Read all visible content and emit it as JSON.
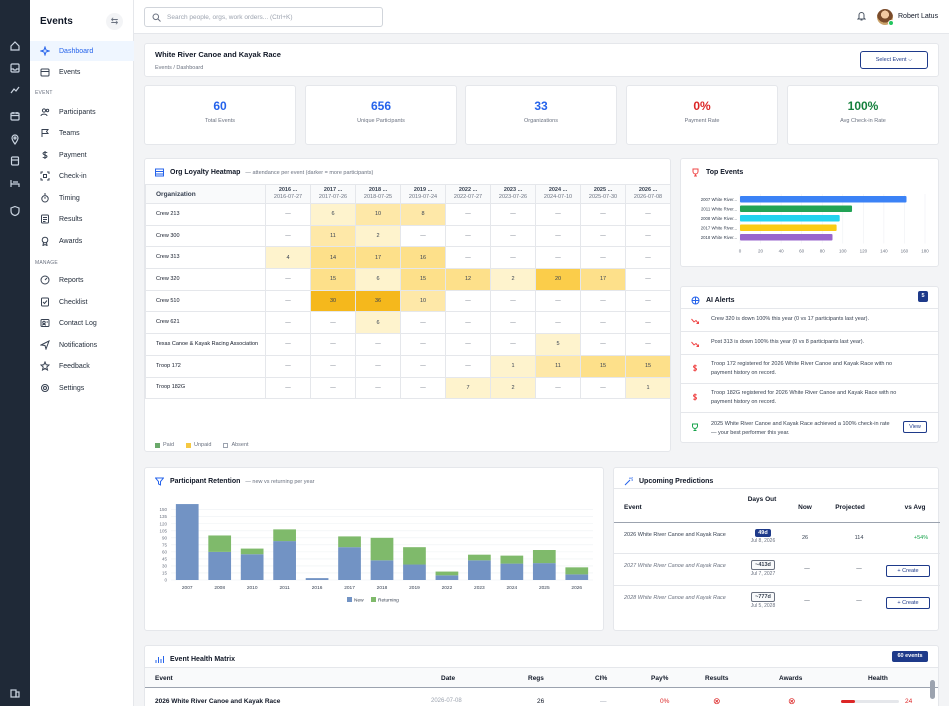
{
  "sidebar": {
    "brand": "Events",
    "items": [
      {
        "label": "Dashboard",
        "icon": "sparkle-icon",
        "active": true
      },
      {
        "label": "Events",
        "icon": "calendar-icon"
      }
    ],
    "section_event": "EVENT",
    "event_items": [
      {
        "label": "Participants",
        "icon": "users-icon"
      },
      {
        "label": "Teams",
        "icon": "flag-icon"
      },
      {
        "label": "Payment",
        "icon": "dollar-icon"
      },
      {
        "label": "Check-in",
        "icon": "scan-icon"
      },
      {
        "label": "Timing",
        "icon": "stopwatch-icon"
      },
      {
        "label": "Results",
        "icon": "list-icon"
      },
      {
        "label": "Awards",
        "icon": "medal-icon"
      }
    ],
    "section_manage": "MANAGE",
    "manage_items": [
      {
        "label": "Reports",
        "icon": "gauge-icon"
      },
      {
        "label": "Checklist",
        "icon": "checklist-icon"
      },
      {
        "label": "Contact Log",
        "icon": "contact-icon"
      },
      {
        "label": "Notifications",
        "icon": "send-icon"
      },
      {
        "label": "Feedback",
        "icon": "star-icon"
      },
      {
        "label": "Settings",
        "icon": "gear-icon"
      }
    ]
  },
  "topbar": {
    "search_placeholder": "Search people, orgs, work orders... (Ctrl+K)",
    "user_name": "Robert Latus"
  },
  "header": {
    "title": "White River Canoe and Kayak Race",
    "breadcrumb": "Events  /  Dashboard",
    "select_event": "Select Event ⌵"
  },
  "stats": [
    {
      "value": "60",
      "label": "Total Events",
      "color": "#2563eb"
    },
    {
      "value": "656",
      "label": "Unique Participants",
      "color": "#2563eb"
    },
    {
      "value": "33",
      "label": "Organizations",
      "color": "#2563eb"
    },
    {
      "value": "0%",
      "label": "Payment Rate",
      "color": "#dc2626"
    },
    {
      "value": "100%",
      "label": "Avg Check-in Rate",
      "color": "#15803d"
    }
  ],
  "heatmap": {
    "title": "Org Loyalty Heatmap",
    "subtitle": "— attendance per event (darker = more participants)",
    "org_header": "Organization",
    "columns": [
      {
        "name": "2016 ...",
        "date": "2016-07-27"
      },
      {
        "name": "2017 ...",
        "date": "2017-07-26"
      },
      {
        "name": "2018 ...",
        "date": "2018-07-25"
      },
      {
        "name": "2019 ...",
        "date": "2019-07-24"
      },
      {
        "name": "2022 ...",
        "date": "2022-07-27"
      },
      {
        "name": "2023 ...",
        "date": "2023-07-26"
      },
      {
        "name": "2024 ...",
        "date": "2024-07-10"
      },
      {
        "name": "2025 ...",
        "date": "2025-07-30"
      },
      {
        "name": "2026 ...",
        "date": "2026-07-08"
      }
    ],
    "rows": [
      {
        "org": "Crew 213",
        "cells": [
          "—",
          "6",
          "10",
          "8",
          "—",
          "—",
          "—",
          "—",
          "—"
        ]
      },
      {
        "org": "Crew 300",
        "cells": [
          "—",
          "11",
          "2",
          "—",
          "—",
          "—",
          "—",
          "—",
          "—"
        ]
      },
      {
        "org": "Crew 313",
        "cells": [
          "4",
          "14",
          "17",
          "16",
          "—",
          "—",
          "—",
          "—",
          "—"
        ]
      },
      {
        "org": "Crew 320",
        "cells": [
          "—",
          "15",
          "6",
          "15",
          "12",
          "2",
          "20",
          "17",
          "—"
        ]
      },
      {
        "org": "Crew 510",
        "cells": [
          "—",
          "30",
          "36",
          "10",
          "—",
          "—",
          "—",
          "—",
          "—"
        ]
      },
      {
        "org": "Crew 621",
        "cells": [
          "—",
          "—",
          "6",
          "—",
          "—",
          "—",
          "—",
          "—",
          "—"
        ]
      },
      {
        "org": "Texas Canoe & Kayak Racing Association",
        "cells": [
          "—",
          "—",
          "—",
          "—",
          "—",
          "—",
          "5",
          "—",
          "—"
        ]
      },
      {
        "org": "Troop 172",
        "cells": [
          "—",
          "—",
          "—",
          "—",
          "—",
          "1",
          "11",
          "15",
          "15"
        ]
      },
      {
        "org": "Troop 182G",
        "cells": [
          "—",
          "—",
          "—",
          "—",
          "7",
          "2",
          "—",
          "—",
          "1"
        ]
      }
    ],
    "legend": [
      {
        "label": "Paid",
        "color": "#6aa96a"
      },
      {
        "label": "Unpaid",
        "color": "#f5c842"
      },
      {
        "label": "Absent",
        "color": "#ffffff"
      }
    ]
  },
  "top_events": {
    "title": "Top Events",
    "chart_data": {
      "type": "bar",
      "orientation": "horizontal",
      "categories": [
        "2007 White River...",
        "2011 White River...",
        "2008 White River...",
        "2017 White River...",
        "2018 White River..."
      ],
      "values": [
        162,
        109,
        97,
        94,
        90
      ],
      "colors": [
        "#3b82f6",
        "#22a355",
        "#22d3ee",
        "#facc15",
        "#9966cc"
      ],
      "xlim": [
        0,
        180
      ],
      "xticks": [
        "0",
        "20",
        "40",
        "60",
        "80",
        "100",
        "120",
        "140",
        "160",
        "180"
      ]
    }
  },
  "alerts": {
    "title": "AI Alerts",
    "count": "5",
    "items": [
      {
        "icon": "trend-down-icon",
        "text": "Crew 320 is down 100% this year (0 vs 17 participants last year)."
      },
      {
        "icon": "trend-down-icon",
        "text": "Post 313 is down 100% this year (0 vs 8 participants last year)."
      },
      {
        "icon": "dollar-icon",
        "text": "Troop 172 registered for 2026 White River Canoe and Kayak Race with no payment history on record."
      },
      {
        "icon": "dollar-icon",
        "text": "Troop 182G registered for 2026 White River Canoe and Kayak Race with no payment history on record."
      },
      {
        "icon": "trophy-icon",
        "text": "2025 White River Canoe and Kayak Race achieved a 100% check-in rate — your best performer this year.",
        "action": "View"
      }
    ]
  },
  "retention": {
    "title": "Participant Retention",
    "subtitle": "— new vs returning per year",
    "chart_data": {
      "type": "bar",
      "stacked": true,
      "categories": [
        "2007",
        "2008",
        "2010",
        "2011",
        "2016",
        "2017",
        "2018",
        "2019",
        "2022",
        "2023",
        "2024",
        "2025",
        "2026"
      ],
      "series": [
        {
          "name": "New",
          "values": [
            162,
            60,
            55,
            83,
            4,
            70,
            42,
            33,
            10,
            42,
            35,
            36,
            12
          ],
          "color": "#7293c4"
        },
        {
          "name": "Returning",
          "values": [
            0,
            35,
            12,
            25,
            0,
            23,
            48,
            37,
            8,
            12,
            17,
            28,
            15
          ],
          "color": "#7fba6b"
        }
      ],
      "ylim": [
        0,
        160
      ],
      "yticks": [
        "0",
        "15",
        "30",
        "45",
        "60",
        "75",
        "90",
        "105",
        "120",
        "135",
        "150"
      ]
    }
  },
  "predictions": {
    "title": "Upcoming Predictions",
    "headers": {
      "event": "Event",
      "days": "Days Out",
      "now": "Now",
      "projected": "Projected",
      "vs_avg": "vs Avg"
    },
    "rows": [
      {
        "event": "2026 White River Canoe and Kayak Race",
        "days": "49d",
        "date": "Jul 8, 2026",
        "now": "26",
        "projected": "114",
        "vs_avg": "+54%"
      },
      {
        "event": "2027 White River Canoe and Kayak Race",
        "days": "~413d",
        "date": "Jul 7, 2027",
        "now": "—",
        "projected": "—",
        "action": "Create"
      },
      {
        "event": "2028 White River Canoe and Kayak Race",
        "days": "~777d",
        "date": "Jul 5, 2028",
        "now": "—",
        "projected": "—",
        "action": "Create"
      }
    ]
  },
  "health": {
    "title": "Event Health Matrix",
    "badge": "60 events",
    "headers": [
      "Event",
      "Date",
      "Regs",
      "CI%",
      "Pay%",
      "Results",
      "Awards",
      "Health"
    ],
    "row": {
      "event": "2026 White River Canoe and Kayak Race",
      "date": "2026-07-08",
      "regs": "26",
      "ci": "—",
      "pay": "0%",
      "health": "24"
    }
  }
}
